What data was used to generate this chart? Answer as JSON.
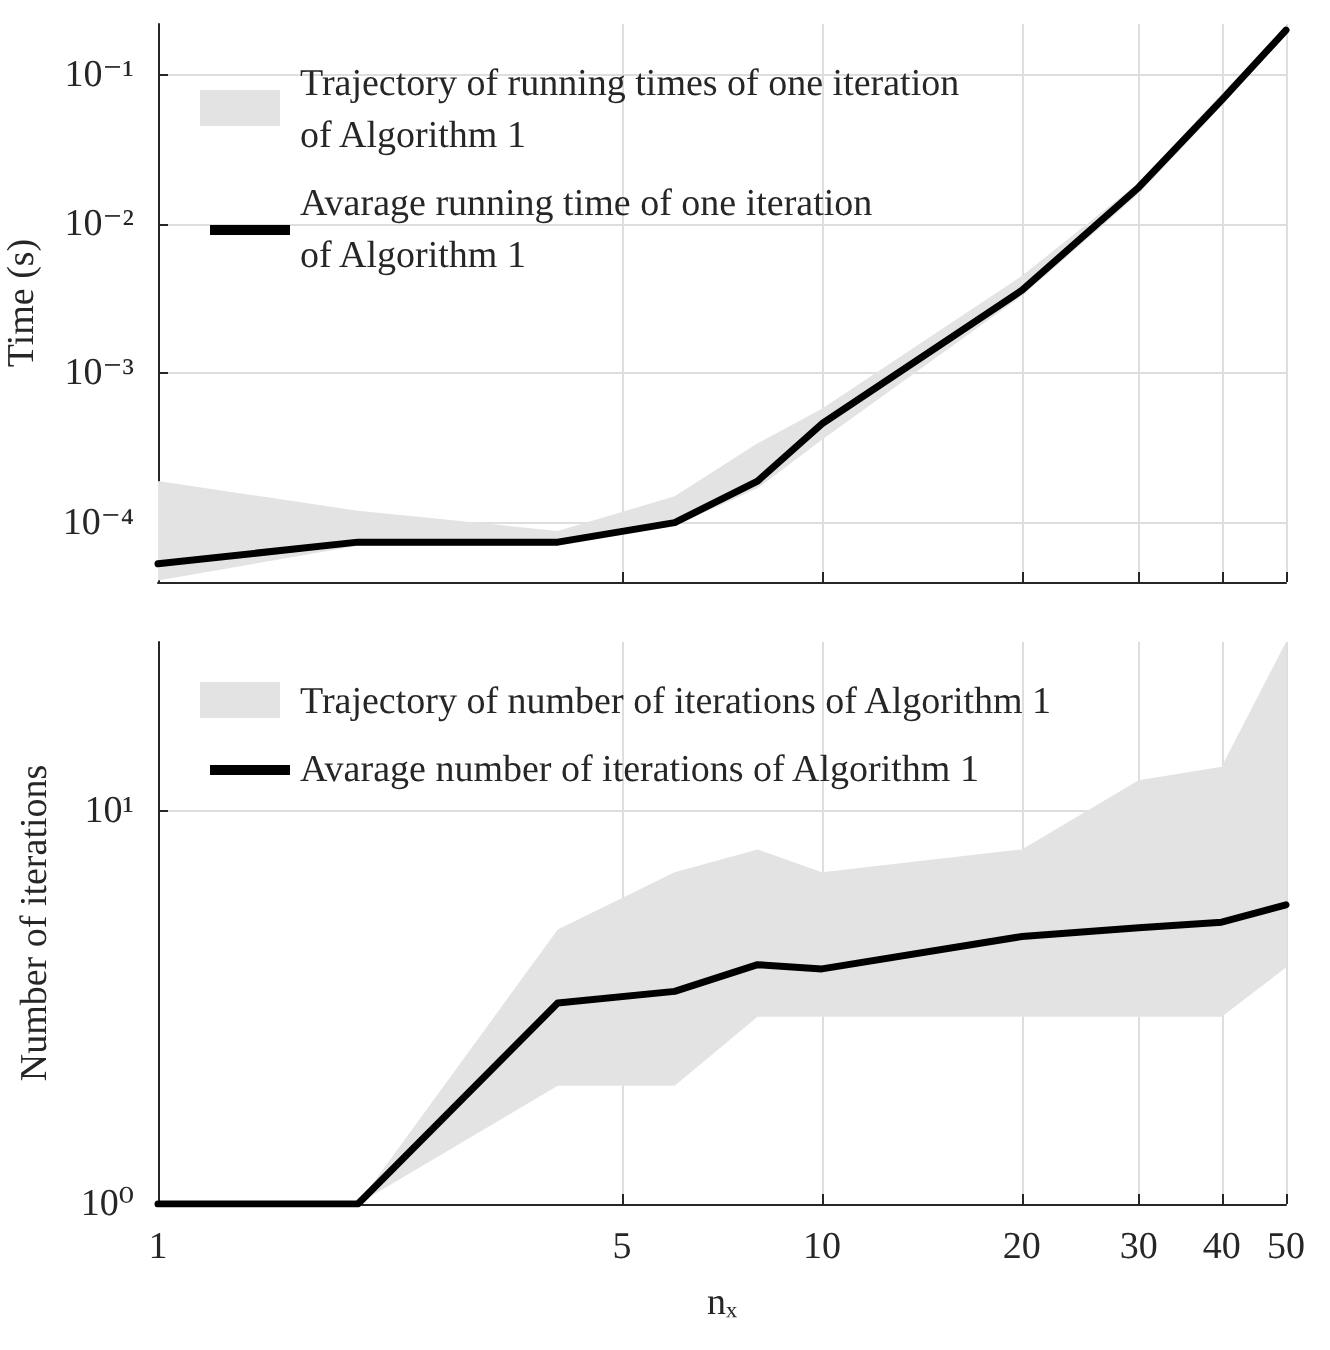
{
  "chart_data": [
    {
      "type": "line",
      "ylabel": "Time (s)",
      "x": [
        1,
        2,
        4,
        6,
        8,
        10,
        20,
        30,
        40,
        50
      ],
      "log": "xy",
      "grid": true,
      "legend": "top left",
      "tick_labels": "y",
      "xlim": [
        1,
        50
      ],
      "xticks": [
        1,
        5,
        10,
        20,
        30,
        40,
        50
      ],
      "ylim": [
        4e-05,
        0.22
      ],
      "yticks": [
        {
          "value": 0.0001,
          "label": "10⁻⁴"
        },
        {
          "value": 0.001,
          "label": "10⁻³"
        },
        {
          "value": 0.01,
          "label": "10⁻²"
        },
        {
          "value": 0.1,
          "label": "10⁻¹"
        }
      ],
      "annotations": [
        "Trajectory of running times of one iteration\nof Algorithm 1"
      ],
      "series": [
        {
          "type": "line",
          "name": "Avarage running time of one iteration\nof Algorithm 1",
          "color": "#000000",
          "values": [
            5.3e-05,
            7.4e-05,
            7.4e-05,
            0.0001,
            0.00019,
            0.00046,
            0.0036,
            0.0177,
            0.068,
            0.2
          ],
          "lower": [
            4.1e-05,
            7e-05,
            7e-05,
            9.5e-05,
            0.00017,
            0.00036,
            0.0033,
            0.016,
            0.062,
            0.19
          ],
          "upper": [
            0.00019,
            0.00012,
            8.8e-05,
            0.00015,
            0.00034,
            0.00058,
            0.0045,
            0.019,
            0.075,
            0.21
          ]
        }
      ]
    },
    {
      "type": "line",
      "xlabel": "nₓ",
      "ylabel": "Number of iterations",
      "x": [
        1,
        2,
        4,
        6,
        8,
        10,
        20,
        30,
        40,
        50
      ],
      "log": "xy",
      "grid": true,
      "legend": "top left",
      "xlim": [
        1,
        50
      ],
      "xticks": [
        1,
        5,
        10,
        20,
        30,
        40,
        50
      ],
      "ylim": [
        1,
        27
      ],
      "yticks": [
        {
          "value": 1,
          "label": "10⁰"
        },
        {
          "value": 10,
          "label": "10¹"
        }
      ],
      "annotations": [
        "Trajectory of number of iterations of Algorithm 1"
      ],
      "series": [
        {
          "type": "line",
          "name": "Avarage number of iterations of Algorithm 1",
          "color": "#000000",
          "values": [
            1,
            1,
            3.25,
            3.48,
            4.07,
            3.97,
            4.8,
            5.05,
            5.22,
            5.78
          ],
          "lower": [
            1,
            1,
            2,
            2,
            3,
            3,
            3,
            3,
            3,
            4
          ],
          "upper": [
            1,
            1,
            5,
            7,
            8,
            7,
            8,
            12,
            13,
            27
          ]
        }
      ]
    }
  ]
}
